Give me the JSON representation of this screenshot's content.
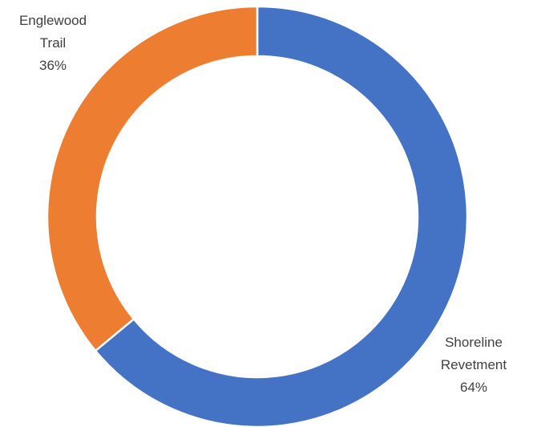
{
  "chart_data": {
    "type": "pie",
    "variant": "donut",
    "title": "",
    "series": [
      {
        "values": [
          64,
          36
        ],
        "categories": [
          "Shoreline Revetment",
          "Englewood Trail"
        ]
      }
    ],
    "slices": [
      {
        "category": "Shoreline Revetment",
        "label_lines": [
          "Shoreline",
          "Revetment"
        ],
        "value": 64,
        "value_label": "64%",
        "color": "#4472C4"
      },
      {
        "category": "Englewood Trail",
        "label_lines": [
          "Englewood",
          "Trail"
        ],
        "value": 36,
        "value_label": "36%",
        "color": "#ED7D31"
      }
    ],
    "legend": "none",
    "start_angle": "12 o'clock",
    "direction": "clockwise"
  }
}
